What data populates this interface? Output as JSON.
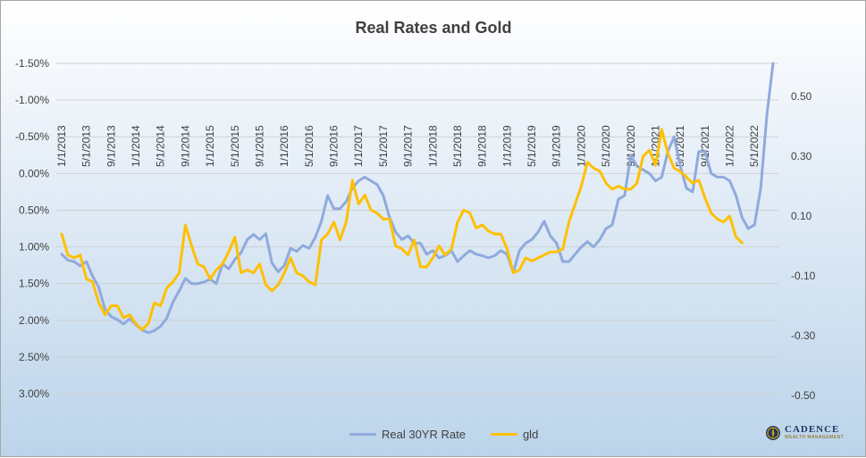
{
  "chart_data": {
    "type": "line",
    "title": "Real Rates and Gold",
    "x_tick_labels": [
      "1/1/2013",
      "5/1/2013",
      "9/1/2013",
      "1/1/2014",
      "5/1/2014",
      "9/1/2014",
      "1/1/2015",
      "5/1/2015",
      "9/1/2015",
      "1/1/2016",
      "5/1/2016",
      "9/1/2016",
      "1/1/2017",
      "5/1/2017",
      "9/1/2017",
      "1/1/2018",
      "5/1/2018",
      "9/1/2018",
      "1/1/2019",
      "5/1/2019",
      "9/1/2019",
      "1/1/2020",
      "5/1/2020",
      "9/1/2020",
      "1/1/2021",
      "5/1/2021",
      "9/1/2021",
      "1/1/2022",
      "5/1/2022"
    ],
    "y_left": {
      "reversed": true,
      "range": [
        -1.5,
        3.0
      ],
      "ticks": [
        "-1.50%",
        "-1.00%",
        "-0.50%",
        "0.00%",
        "0.50%",
        "1.00%",
        "1.50%",
        "2.00%",
        "2.50%",
        "3.00%"
      ]
    },
    "y_right": {
      "range": [
        -0.5,
        0.6
      ],
      "ticks": [
        "0.50",
        "0.30",
        "0.10",
        "-0.10",
        "-0.30",
        "-0.50"
      ]
    },
    "grid": true,
    "legend_position": "bottom",
    "series": [
      {
        "name": "Real 30YR Rate",
        "axis": "left",
        "color": "#8faadc",
        "values": [
          1.1,
          1.18,
          1.2,
          1.26,
          1.2,
          1.4,
          1.55,
          1.85,
          1.95,
          1.99,
          2.05,
          1.98,
          2.06,
          2.13,
          2.17,
          2.14,
          2.08,
          1.97,
          1.75,
          1.6,
          1.43,
          1.5,
          1.5,
          1.48,
          1.44,
          1.5,
          1.23,
          1.3,
          1.17,
          1.08,
          0.9,
          0.83,
          0.9,
          0.82,
          1.22,
          1.34,
          1.25,
          1.02,
          1.06,
          0.98,
          1.02,
          0.87,
          0.65,
          0.3,
          0.48,
          0.48,
          0.38,
          0.2,
          0.1,
          0.05,
          0.1,
          0.15,
          0.3,
          0.6,
          0.8,
          0.9,
          0.85,
          0.95,
          0.95,
          1.1,
          1.05,
          1.15,
          1.12,
          1.05,
          1.2,
          1.12,
          1.05,
          1.1,
          1.12,
          1.15,
          1.12,
          1.05,
          1.1,
          1.35,
          1.05,
          0.95,
          0.9,
          0.8,
          0.65,
          0.85,
          0.95,
          1.2,
          1.2,
          1.1,
          1.0,
          0.93,
          1.0,
          0.9,
          0.75,
          0.7,
          0.35,
          0.3,
          -0.25,
          -0.1,
          -0.05,
          0.0,
          0.1,
          0.05,
          -0.3,
          -0.5,
          -0.1,
          0.2,
          0.25,
          -0.3,
          -0.3,
          0.0,
          0.05,
          0.05,
          0.1,
          0.3,
          0.6,
          0.75,
          0.7,
          0.2,
          -0.8,
          -1.5
        ]
      },
      {
        "name": "gld",
        "axis": "right",
        "color": "#ffc000",
        "values": [
          0.04,
          -0.03,
          -0.04,
          -0.03,
          -0.11,
          -0.12,
          -0.19,
          -0.23,
          -0.2,
          -0.2,
          -0.24,
          -0.23,
          -0.26,
          -0.28,
          -0.26,
          -0.19,
          -0.2,
          -0.14,
          -0.12,
          -0.09,
          0.07,
          0.0,
          -0.06,
          -0.07,
          -0.11,
          -0.08,
          -0.06,
          -0.02,
          0.03,
          -0.09,
          -0.08,
          -0.09,
          -0.06,
          -0.13,
          -0.15,
          -0.13,
          -0.09,
          -0.04,
          -0.09,
          -0.1,
          -0.12,
          -0.13,
          0.02,
          0.04,
          0.08,
          0.02,
          0.08,
          0.22,
          0.14,
          0.17,
          0.12,
          0.11,
          0.09,
          0.09,
          0.0,
          -0.01,
          -0.03,
          0.02,
          -0.07,
          -0.07,
          -0.04,
          0.0,
          -0.03,
          -0.01,
          0.08,
          0.12,
          0.11,
          0.06,
          0.07,
          0.05,
          0.04,
          0.04,
          -0.01,
          -0.09,
          -0.08,
          -0.04,
          -0.05,
          -0.04,
          -0.03,
          -0.02,
          -0.02,
          -0.01,
          0.08,
          0.14,
          0.2,
          0.28,
          0.26,
          0.25,
          0.21,
          0.19,
          0.2,
          0.19,
          0.19,
          0.21,
          0.3,
          0.32,
          0.27,
          0.39,
          0.31,
          0.26,
          0.25,
          0.23,
          0.21,
          0.22,
          0.16,
          0.11,
          0.09,
          0.08,
          0.1,
          0.03,
          0.01
        ]
      }
    ]
  },
  "legend": {
    "items": [
      {
        "label": "Real 30YR Rate",
        "color": "#8faadc"
      },
      {
        "label": "gld",
        "color": "#ffc000"
      }
    ]
  },
  "logo": {
    "name": "CADENCE",
    "subtitle": "WEALTH MANAGEMENT"
  }
}
